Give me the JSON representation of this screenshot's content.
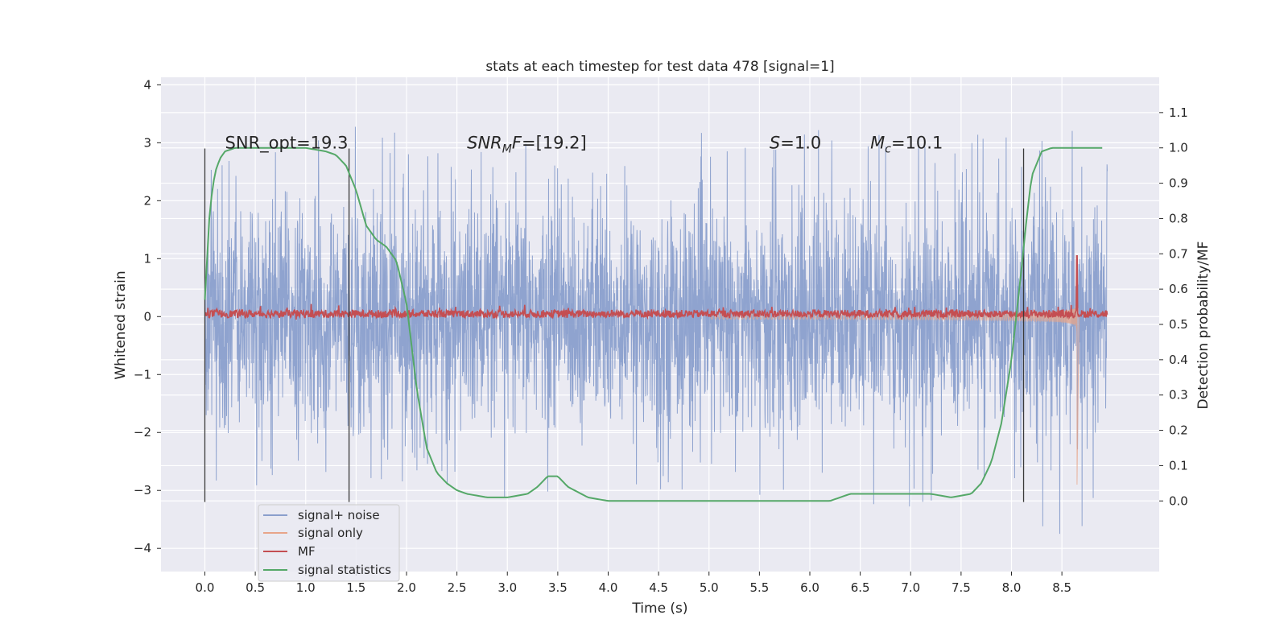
{
  "chart_data": {
    "type": "line",
    "title": "stats at each timestep for test data 478 [signal=1]",
    "xlabel": "Time (s)",
    "ylabel_left": "Whitened strain",
    "ylabel_right": "Detection probability/MF",
    "xlim": [
      -0.435,
      9.465
    ],
    "ylim_left": [
      -4.4,
      4.13
    ],
    "ylim_right": [
      -0.2,
      1.2
    ],
    "x_ticks": [
      0.0,
      0.5,
      1.0,
      1.5,
      2.0,
      2.5,
      3.0,
      3.5,
      4.0,
      4.5,
      5.0,
      5.5,
      6.0,
      6.5,
      7.0,
      7.5,
      8.0,
      8.5
    ],
    "x_tick_labels": [
      "0.0",
      "0.5",
      "1.0",
      "1.5",
      "2.0",
      "2.5",
      "3.0",
      "3.5",
      "4.0",
      "4.5",
      "5.0",
      "5.5",
      "6.0",
      "6.5",
      "7.0",
      "7.5",
      "8.0",
      "8.5"
    ],
    "y_left_ticks": [
      -4,
      -3,
      -2,
      -1,
      0,
      1,
      2,
      3,
      4
    ],
    "y_left_tick_labels": [
      "−4",
      "−3",
      "−2",
      "−1",
      "0",
      "1",
      "2",
      "3",
      "4"
    ],
    "y_right_ticks": [
      0.0,
      0.1,
      0.2,
      0.3,
      0.4,
      0.5,
      0.6,
      0.7,
      0.8,
      0.9,
      1.0,
      1.1
    ],
    "y_right_tick_labels": [
      "0.0",
      "0.1",
      "0.2",
      "0.3",
      "0.4",
      "0.5",
      "0.6",
      "0.7",
      "0.8",
      "0.9",
      "1.0",
      "1.1"
    ],
    "grid": true,
    "legend_position": "lower-left",
    "noise_x_range": [
      0.0,
      8.95
    ],
    "noise_envelope": {
      "x": [
        0.0,
        0.5,
        1.0,
        1.5,
        2.0,
        2.5,
        3.0,
        3.5,
        4.0,
        4.5,
        5.0,
        5.5,
        6.0,
        6.5,
        7.0,
        7.5,
        8.0,
        8.5,
        8.95
      ],
      "upper": [
        2.5,
        3.5,
        2.9,
        3.6,
        3.1,
        2.7,
        3.1,
        2.8,
        2.9,
        3.0,
        3.2,
        2.8,
        3.5,
        3.4,
        3.5,
        3.0,
        3.6,
        3.5,
        2.7
      ],
      "lower": [
        -3.1,
        -3.1,
        -2.9,
        -3.3,
        -3.1,
        -3.0,
        -3.5,
        -2.9,
        -2.9,
        -3.1,
        -3.4,
        -3.1,
        -2.9,
        -3.5,
        -3.3,
        -3.2,
        -3.1,
        -4.0,
        -3.2
      ]
    },
    "signal_only": {
      "start": 5.0,
      "merger": 8.65,
      "start_amplitude": 0.05,
      "peak_amplitude": 3.0
    },
    "mf_peak": {
      "x": 8.65,
      "y": 1.0
    },
    "vlines": [
      {
        "x": 0.0,
        "ymin": -3.2,
        "ymax": 2.9
      },
      {
        "x": 1.43,
        "ymin": -3.2,
        "ymax": 2.9
      },
      {
        "x": 8.12,
        "ymin": -3.2,
        "ymax": 2.9
      }
    ],
    "series": [
      {
        "name": "signal+ noise",
        "color": "#8a9fcc",
        "axis": "left"
      },
      {
        "name": "signal only",
        "color": "#e8a58a",
        "axis": "left"
      },
      {
        "name": "MF",
        "color": "#c44e52",
        "axis": "left"
      },
      {
        "name": "signal statistics",
        "color": "#55a868",
        "axis": "right",
        "x": [
          0.0,
          0.05,
          0.1,
          0.15,
          0.2,
          0.3,
          0.5,
          0.8,
          1.0,
          1.2,
          1.3,
          1.4,
          1.5,
          1.6,
          1.7,
          1.8,
          1.9,
          2.0,
          2.1,
          2.2,
          2.3,
          2.4,
          2.5,
          2.6,
          2.8,
          3.0,
          3.2,
          3.3,
          3.4,
          3.5,
          3.6,
          3.8,
          4.0,
          4.5,
          5.0,
          5.5,
          6.0,
          6.2,
          6.4,
          6.6,
          6.8,
          7.0,
          7.2,
          7.4,
          7.6,
          7.7,
          7.8,
          7.9,
          8.0,
          8.1,
          8.15,
          8.2,
          8.3,
          8.4,
          8.5,
          8.7,
          8.9
        ],
        "y": [
          0.57,
          0.83,
          0.93,
          0.97,
          0.99,
          1.0,
          1.0,
          1.0,
          1.0,
          0.99,
          0.98,
          0.95,
          0.88,
          0.78,
          0.74,
          0.72,
          0.68,
          0.56,
          0.32,
          0.15,
          0.08,
          0.05,
          0.03,
          0.02,
          0.01,
          0.01,
          0.02,
          0.04,
          0.07,
          0.07,
          0.04,
          0.01,
          0.0,
          0.0,
          0.0,
          -0.0,
          0.0,
          0.0,
          0.02,
          0.02,
          0.02,
          0.02,
          0.02,
          0.01,
          0.02,
          0.05,
          0.11,
          0.22,
          0.4,
          0.66,
          0.8,
          0.92,
          0.99,
          1.0,
          1.0,
          1.0,
          1.0
        ]
      }
    ],
    "annotations": [
      {
        "id": "snr-opt",
        "x": 0.2,
        "y": 2.9,
        "text": "SNR_opt=19.3",
        "italic": false
      },
      {
        "id": "snr-mf",
        "x": 2.6,
        "y": 2.9,
        "base": "SNR",
        "sub": "M",
        "tail": "F=[19.2]",
        "italic": true
      },
      {
        "id": "s",
        "x": 5.6,
        "y": 2.9,
        "base": "S",
        "sub": "",
        "tail": "=1.0",
        "italic": true
      },
      {
        "id": "mc",
        "x": 6.6,
        "y": 2.9,
        "base": "M",
        "sub": "c",
        "tail": "=10.1",
        "italic": true
      }
    ]
  }
}
